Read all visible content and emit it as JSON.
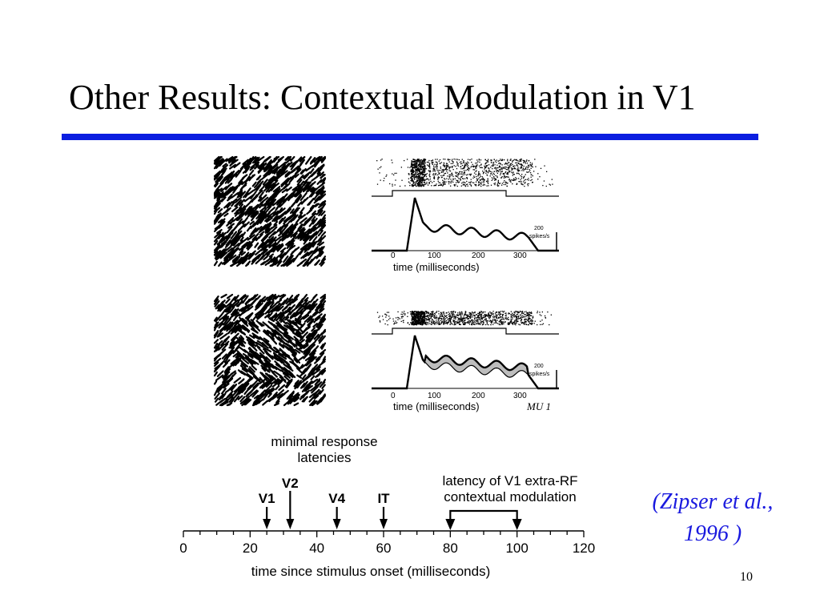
{
  "slide": {
    "title": "Other Results: Contextual Modulation in V1",
    "citation_line1": "(Zipser et al.,",
    "citation_line2": "1996  )",
    "page_number": "10",
    "accent_color": "#0b1ee0",
    "citation_color": "#1a1adf"
  },
  "figure": {
    "psth_top": {
      "x_ticks": [
        "0",
        "100",
        "200",
        "300"
      ],
      "xlabel": "time (milliseconds)",
      "scale_value": "200",
      "scale_unit": "spikes/s"
    },
    "psth_bottom": {
      "x_ticks": [
        "0",
        "100",
        "200",
        "300"
      ],
      "xlabel": "time (milliseconds)",
      "scale_value": "200",
      "scale_unit": "spikes/s",
      "unit_label": "MU 1"
    },
    "latency": {
      "header_line1": "minimal response",
      "header_line2": "latencies",
      "areas": [
        {
          "label": "V1",
          "latency_ms": 25
        },
        {
          "label": "V2",
          "latency_ms": 32
        },
        {
          "label": "V4",
          "latency_ms": 46
        },
        {
          "label": "IT",
          "latency_ms": 60
        }
      ],
      "extra_rf_line1": "latency of V1 extra-RF",
      "extra_rf_line2": "contextual modulation",
      "extra_rf_range_ms": [
        80,
        100
      ],
      "axis_ticks": [
        "0",
        "20",
        "40",
        "60",
        "80",
        "100",
        "120"
      ],
      "axis_range_ms": [
        0,
        120
      ],
      "xlabel": "time since stimulus onset (milliseconds)"
    }
  }
}
